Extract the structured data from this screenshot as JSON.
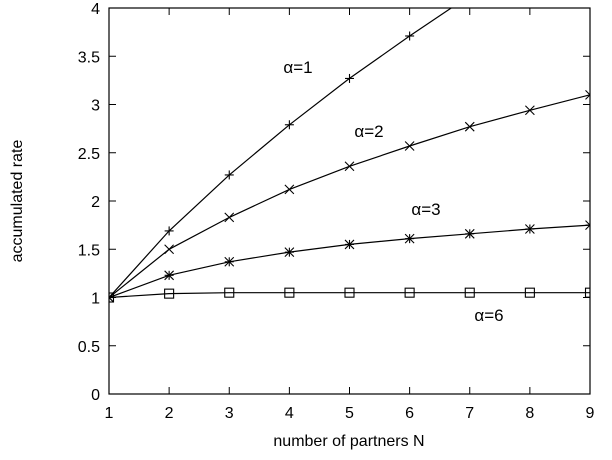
{
  "chart_data": {
    "type": "line",
    "title": "",
    "xlabel": "number of partners N",
    "ylabel": "accumulated rate",
    "xlim": [
      1,
      9
    ],
    "ylim": [
      0,
      4
    ],
    "x_ticks": [
      "1",
      "2",
      "3",
      "4",
      "5",
      "6",
      "7",
      "8",
      "9"
    ],
    "y_ticks": [
      "0",
      "0.5",
      "1",
      "1.5",
      "2",
      "2.5",
      "3",
      "3.5",
      "4"
    ],
    "grid": false,
    "legend": "none",
    "series": [
      {
        "label": "α=1",
        "marker": "plus",
        "x": [
          1,
          2,
          3,
          4,
          5,
          6,
          7
        ],
        "y": [
          1,
          1.69,
          2.27,
          2.79,
          3.27,
          3.71,
          4.13
        ]
      },
      {
        "label": "α=2",
        "marker": "cross",
        "x": [
          1,
          2,
          3,
          4,
          5,
          6,
          7,
          8,
          9
        ],
        "y": [
          1,
          1.5,
          1.83,
          2.12,
          2.36,
          2.57,
          2.77,
          2.94,
          3.1
        ]
      },
      {
        "label": "α=3",
        "marker": "star",
        "x": [
          1,
          2,
          3,
          4,
          5,
          6,
          7,
          8,
          9
        ],
        "y": [
          1,
          1.23,
          1.37,
          1.47,
          1.55,
          1.61,
          1.66,
          1.71,
          1.75
        ]
      },
      {
        "label": "α=6",
        "marker": "square",
        "x": [
          1,
          2,
          3,
          4,
          5,
          6,
          7,
          8,
          9
        ],
        "y": [
          1,
          1.04,
          1.05,
          1.05,
          1.05,
          1.05,
          1.05,
          1.05,
          1.05
        ]
      }
    ]
  }
}
